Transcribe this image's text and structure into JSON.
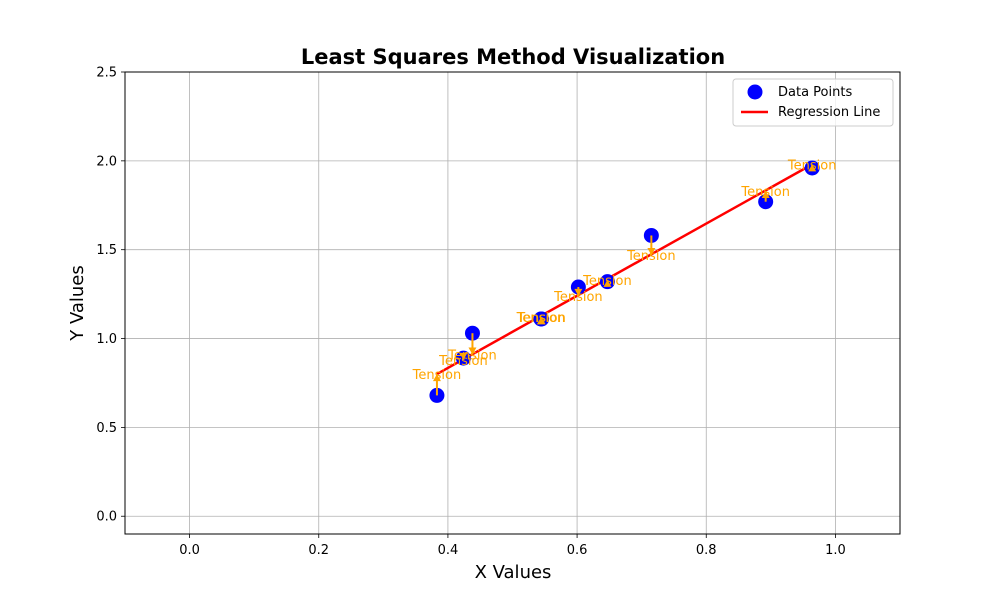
{
  "chart_data": {
    "type": "scatter",
    "title": "Least Squares Method Visualization",
    "xlabel": "X Values",
    "ylabel": "Y Values",
    "xlim": [
      -0.1,
      1.1
    ],
    "ylim": [
      -0.1,
      2.5
    ],
    "x_ticks": [
      0.0,
      0.2,
      0.4,
      0.6,
      0.8,
      1.0
    ],
    "y_ticks": [
      0.0,
      0.5,
      1.0,
      1.5,
      2.0,
      2.5
    ],
    "x_tick_labels": [
      "0.0",
      "0.2",
      "0.4",
      "0.6",
      "0.8",
      "1.0"
    ],
    "y_tick_labels": [
      "0.0",
      "0.5",
      "1.0",
      "1.5",
      "2.0",
      "2.5"
    ],
    "grid": true,
    "legend_position": "top-right",
    "series": [
      {
        "name": "Data Points",
        "kind": "scatter",
        "color": "#0000ff",
        "points": [
          {
            "x": 0.383,
            "y": 0.68
          },
          {
            "x": 0.424,
            "y": 0.89
          },
          {
            "x": 0.438,
            "y": 1.03
          },
          {
            "x": 0.545,
            "y": 1.11
          },
          {
            "x": 0.544,
            "y": 1.11
          },
          {
            "x": 0.602,
            "y": 1.29
          },
          {
            "x": 0.647,
            "y": 1.32
          },
          {
            "x": 0.715,
            "y": 1.58
          },
          {
            "x": 0.892,
            "y": 1.77
          },
          {
            "x": 0.964,
            "y": 1.96
          }
        ]
      },
      {
        "name": "Regression Line",
        "kind": "line",
        "color": "#ff0000",
        "points": [
          {
            "x": 0.383,
            "y": 0.8
          },
          {
            "x": 0.964,
            "y": 1.98
          }
        ]
      }
    ],
    "annotations": {
      "text": "Tension",
      "color": "#ffa500",
      "items": [
        {
          "x": 0.383,
          "y_from": 0.68,
          "y_to": 0.8
        },
        {
          "x": 0.424,
          "y_from": 0.89,
          "y_to": 0.88
        },
        {
          "x": 0.438,
          "y_from": 1.03,
          "y_to": 0.91
        },
        {
          "x": 0.544,
          "y_from": 1.11,
          "y_to": 1.12
        },
        {
          "x": 0.545,
          "y_from": 1.11,
          "y_to": 1.12
        },
        {
          "x": 0.602,
          "y_from": 1.29,
          "y_to": 1.24
        },
        {
          "x": 0.647,
          "y_from": 1.32,
          "y_to": 1.33
        },
        {
          "x": 0.715,
          "y_from": 1.58,
          "y_to": 1.47
        },
        {
          "x": 0.892,
          "y_from": 1.77,
          "y_to": 1.83
        },
        {
          "x": 0.964,
          "y_from": 1.96,
          "y_to": 1.98
        }
      ]
    }
  }
}
